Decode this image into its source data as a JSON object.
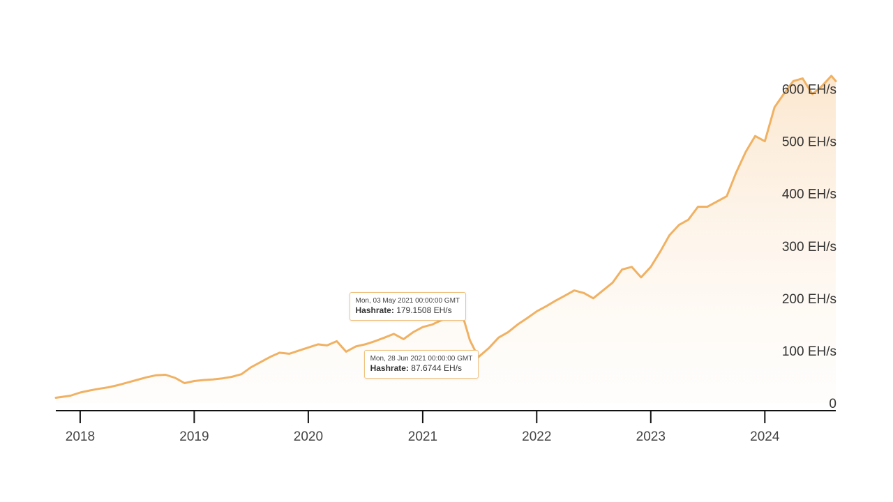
{
  "chart_data": {
    "type": "area",
    "title": "",
    "xlabel": "",
    "ylabel": "",
    "x_ticks": [
      "2018",
      "2019",
      "2020",
      "2021",
      "2022",
      "2023",
      "2024"
    ],
    "y_ticks": [
      "0",
      "100 EH/s",
      "200 EH/s",
      "300 EH/s",
      "400 EH/s",
      "500 EH/s",
      "600 EH/s"
    ],
    "ylim": [
      0,
      650
    ],
    "xlim": [
      "2017-10-15",
      "2024-08-15"
    ],
    "grid": false,
    "y_axis_side": "right",
    "line_color": "#f0b162",
    "series": [
      {
        "unit": "EH/s",
        "points": [
          [
            "2017-10-15",
            10
          ],
          [
            "2017-12-01",
            14
          ],
          [
            "2018-01-01",
            20
          ],
          [
            "2018-02-01",
            24
          ],
          [
            "2018-03-01",
            27
          ],
          [
            "2018-04-01",
            30
          ],
          [
            "2018-05-01",
            34
          ],
          [
            "2018-06-01",
            39
          ],
          [
            "2018-07-01",
            44
          ],
          [
            "2018-08-01",
            49
          ],
          [
            "2018-09-01",
            53
          ],
          [
            "2018-10-01",
            54
          ],
          [
            "2018-11-01",
            48
          ],
          [
            "2018-12-01",
            38
          ],
          [
            "2019-01-01",
            42
          ],
          [
            "2019-02-01",
            44
          ],
          [
            "2019-03-01",
            45
          ],
          [
            "2019-04-01",
            47
          ],
          [
            "2019-05-01",
            50
          ],
          [
            "2019-06-01",
            55
          ],
          [
            "2019-07-01",
            68
          ],
          [
            "2019-08-01",
            78
          ],
          [
            "2019-09-01",
            88
          ],
          [
            "2019-10-01",
            96
          ],
          [
            "2019-11-01",
            94
          ],
          [
            "2019-12-01",
            100
          ],
          [
            "2020-01-01",
            106
          ],
          [
            "2020-02-01",
            112
          ],
          [
            "2020-03-01",
            110
          ],
          [
            "2020-04-01",
            118
          ],
          [
            "2020-05-01",
            98
          ],
          [
            "2020-06-01",
            108
          ],
          [
            "2020-07-01",
            112
          ],
          [
            "2020-08-01",
            118
          ],
          [
            "2020-09-01",
            125
          ],
          [
            "2020-10-01",
            132
          ],
          [
            "2020-11-01",
            122
          ],
          [
            "2020-12-01",
            135
          ],
          [
            "2021-01-01",
            145
          ],
          [
            "2021-02-01",
            150
          ],
          [
            "2021-03-01",
            158
          ],
          [
            "2021-04-01",
            164
          ],
          [
            "2021-05-03",
            179.1508
          ],
          [
            "2021-06-01",
            120
          ],
          [
            "2021-06-28",
            87.6744
          ],
          [
            "2021-08-01",
            105
          ],
          [
            "2021-09-01",
            125
          ],
          [
            "2021-10-01",
            135
          ],
          [
            "2021-11-01",
            150
          ],
          [
            "2021-12-01",
            162
          ],
          [
            "2022-01-01",
            175
          ],
          [
            "2022-02-01",
            185
          ],
          [
            "2022-03-01",
            195
          ],
          [
            "2022-04-01",
            205
          ],
          [
            "2022-05-01",
            215
          ],
          [
            "2022-06-01",
            210
          ],
          [
            "2022-07-01",
            200
          ],
          [
            "2022-08-01",
            215
          ],
          [
            "2022-09-01",
            230
          ],
          [
            "2022-10-01",
            255
          ],
          [
            "2022-11-01",
            260
          ],
          [
            "2022-12-01",
            240
          ],
          [
            "2023-01-01",
            260
          ],
          [
            "2023-02-01",
            290
          ],
          [
            "2023-03-01",
            320
          ],
          [
            "2023-04-01",
            340
          ],
          [
            "2023-05-01",
            350
          ],
          [
            "2023-06-01",
            375
          ],
          [
            "2023-07-01",
            375
          ],
          [
            "2023-08-01",
            385
          ],
          [
            "2023-09-01",
            395
          ],
          [
            "2023-10-01",
            440
          ],
          [
            "2023-11-01",
            480
          ],
          [
            "2023-12-01",
            510
          ],
          [
            "2024-01-01",
            500
          ],
          [
            "2024-02-01",
            565
          ],
          [
            "2024-03-01",
            590
          ],
          [
            "2024-04-01",
            615
          ],
          [
            "2024-05-01",
            620
          ],
          [
            "2024-06-01",
            590
          ],
          [
            "2024-07-01",
            605
          ],
          [
            "2024-08-01",
            625
          ],
          [
            "2024-08-15",
            615
          ]
        ]
      }
    ],
    "annotations": [
      {
        "date_label": "Mon, 03 May 2021 00:00:00 GMT",
        "metric_label": "Hashrate:",
        "value_text": "179.1508 EH/s",
        "x": "2021-05-03",
        "y": 179.1508
      },
      {
        "date_label": "Mon, 28 Jun 2021 00:00:00 GMT",
        "metric_label": "Hashrate:",
        "value_text": "87.6744 EH/s",
        "x": "2021-06-28",
        "y": 87.6744
      }
    ]
  }
}
